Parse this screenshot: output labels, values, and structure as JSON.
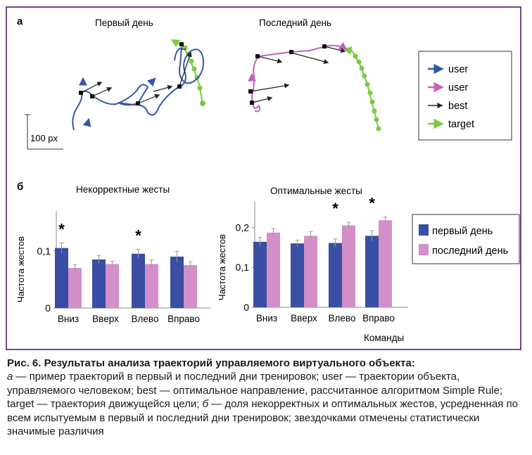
{
  "panel_a": {
    "label": "а",
    "left_title": "Первый день",
    "right_title": "Последний день",
    "scale_label": "100 px",
    "legend": [
      {
        "name": "user",
        "color": "#3556a8"
      },
      {
        "name": "user",
        "color": "#c363b8"
      },
      {
        "name": "best",
        "color": "#222222"
      },
      {
        "name": "target",
        "color": "#7ac943"
      }
    ]
  },
  "panel_b": {
    "label": "б",
    "xlabel_shared": "Команды",
    "legend": [
      {
        "name": "первый день",
        "color": "#3a4ea3"
      },
      {
        "name": "последний день",
        "color": "#d38fc8"
      }
    ]
  },
  "chart_data": [
    {
      "type": "bar",
      "title": "Некорректные жесты",
      "ylabel": "Частота жестов",
      "xlabel": "",
      "categories": [
        "Вниз",
        "Вверх",
        "Влево",
        "Вправо"
      ],
      "ylim": [
        0,
        0.16
      ],
      "yticks": [
        0,
        0.1
      ],
      "yticklabels": [
        "0",
        "0,1"
      ],
      "series": [
        {
          "name": "первый день",
          "values": [
            0.105,
            0.085,
            0.095,
            0.09
          ],
          "errors": [
            0.009,
            0.007,
            0.008,
            0.009
          ]
        },
        {
          "name": "последний день",
          "values": [
            0.07,
            0.077,
            0.077,
            0.075
          ],
          "errors": [
            0.006,
            0.005,
            0.007,
            0.006
          ]
        }
      ],
      "annotations": [
        {
          "category": "Вниз",
          "text": "*"
        },
        {
          "category": "Влево",
          "text": "*"
        }
      ]
    },
    {
      "type": "bar",
      "title": "Оптимальные жесты",
      "ylabel": "Частота жестов",
      "xlabel": "Команды",
      "categories": [
        "Вниз",
        "Вверх",
        "Влево",
        "Вправо"
      ],
      "ylim": [
        0,
        0.25
      ],
      "yticks": [
        0,
        0.1,
        0.2
      ],
      "yticklabels": [
        "0",
        "0,1",
        "0,2"
      ],
      "series": [
        {
          "name": "первый день",
          "values": [
            0.164,
            0.16,
            0.161,
            0.179
          ],
          "errors": [
            0.011,
            0.008,
            0.01,
            0.013
          ]
        },
        {
          "name": "последний день",
          "values": [
            0.187,
            0.179,
            0.205,
            0.218
          ],
          "errors": [
            0.01,
            0.011,
            0.008,
            0.008
          ]
        }
      ],
      "annotations": [
        {
          "category": "Влево",
          "text": "*"
        },
        {
          "category": "Вправо",
          "text": "*"
        }
      ]
    }
  ],
  "caption": {
    "title": "Рис. 6. Результаты анализа траекторий управляемого виртуального объекта:",
    "a_mark": "а",
    "part_a": " — пример траекторий в первый и последний дни тренировок; user — траектории объекта, управляемого человеком; best — оптимальное направление, рассчитанное алгоритмом Simple Rule; target — траектория движущейся цели; ",
    "b_mark": "б",
    "part_b": " — доля некорректных и оптимальных жестов, усредненная по всем испытуемым в первый и последний дни тренировок; звездочками отмечены статистически значимые различия"
  }
}
